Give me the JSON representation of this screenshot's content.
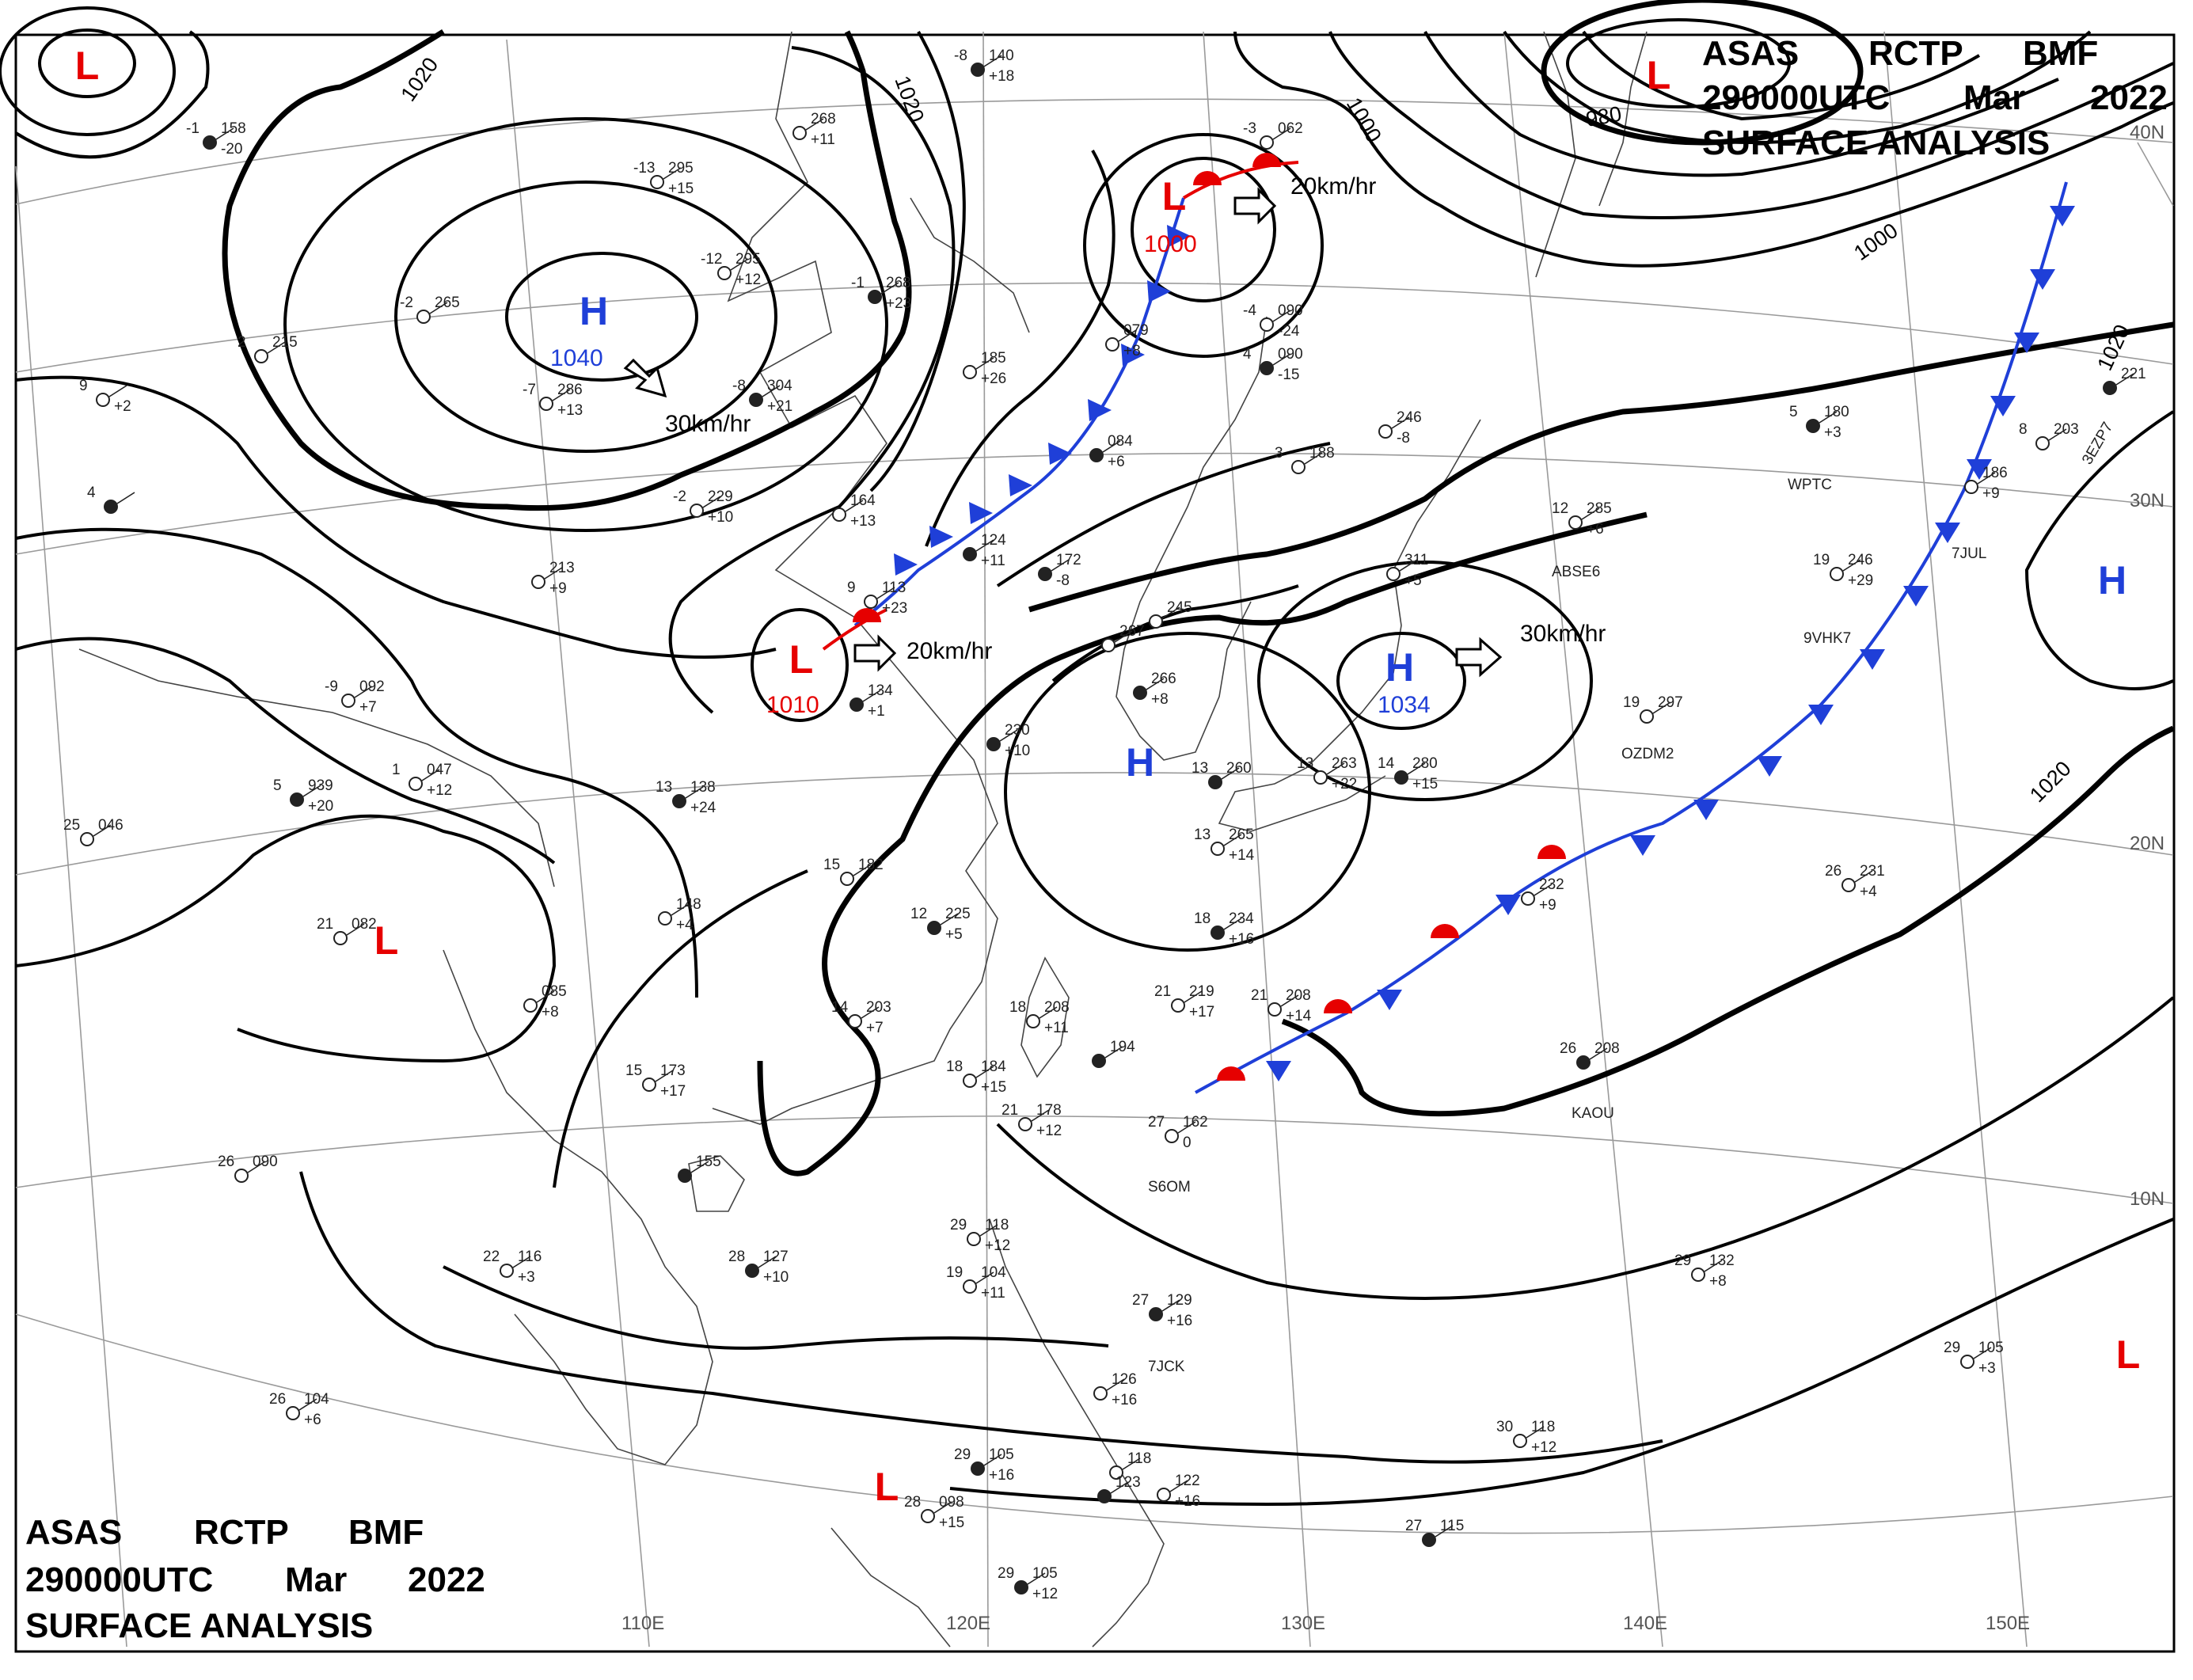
{
  "chart": {
    "agency": "ASAS",
    "station": "RCTP",
    "code": "BMF",
    "time_label": "290000UTC",
    "month": "Mar",
    "year": "2022",
    "product": "SURFACE ANALYSIS"
  },
  "longitude_labels": [
    "110E",
    "120E",
    "130E",
    "140E",
    "150E"
  ],
  "latitude_labels": [
    "40N",
    "30N",
    "20N",
    "10N"
  ],
  "isobar_labels": [
    "1020",
    "1020",
    "1000",
    "980",
    "1000",
    "1020",
    "1020"
  ],
  "pressure_centers": [
    {
      "type": "L",
      "pressure": ""
    },
    {
      "type": "H",
      "pressure": "1040"
    },
    {
      "type": "L",
      "pressure": "1000"
    },
    {
      "type": "L",
      "pressure": ""
    },
    {
      "type": "L",
      "pressure": "1010"
    },
    {
      "type": "H",
      "pressure": "1034"
    },
    {
      "type": "H",
      "pressure": ""
    },
    {
      "type": "H",
      "pressure": ""
    },
    {
      "type": "L",
      "pressure": ""
    },
    {
      "type": "L",
      "pressure": ""
    },
    {
      "type": "L",
      "pressure": ""
    }
  ],
  "movements": [
    "30km/hr",
    "20km/hr",
    "20km/hr",
    "30km/hr"
  ],
  "stations": [
    {
      "temp": "-1",
      "pressure": "158",
      "tend": "-20"
    },
    {
      "temp": "-13",
      "pressure": "295",
      "tend": "+15"
    },
    {
      "temp": "-12",
      "pressure": "295",
      "tend": "+12"
    },
    {
      "temp": "-1",
      "pressure": "268",
      "tend": "+23"
    },
    {
      "temp": "-2",
      "pressure": "265",
      "tend": ""
    },
    {
      "temp": "-7",
      "pressure": "286",
      "tend": "+13"
    },
    {
      "temp": "-8",
      "pressure": "304",
      "tend": "+21"
    },
    {
      "temp": "-2",
      "pressure": "229",
      "tend": "+10"
    },
    {
      "temp": "",
      "pressure": "268",
      "tend": "+11"
    },
    {
      "temp": "-8",
      "pressure": "140",
      "tend": "+18"
    },
    {
      "temp": "9",
      "pressure": "113",
      "tend": "+23"
    },
    {
      "temp": "",
      "pressure": "164",
      "tend": "+13"
    },
    {
      "temp": "",
      "pressure": "124",
      "tend": "+11"
    },
    {
      "temp": "",
      "pressure": "185",
      "tend": "+26"
    },
    {
      "temp": "",
      "pressure": "079",
      "tend": "+8"
    },
    {
      "temp": "",
      "pressure": "084",
      "tend": "+6"
    },
    {
      "temp": "-3",
      "pressure": "062",
      "tend": ""
    },
    {
      "temp": "-4",
      "pressure": "090",
      "tend": "-24"
    },
    {
      "temp": "4",
      "pressure": "090",
      "tend": "-15"
    },
    {
      "temp": "3",
      "pressure": "188",
      "tend": ""
    },
    {
      "temp": "",
      "pressure": "246",
      "tend": "-8"
    },
    {
      "temp": "",
      "pressure": "172",
      "tend": "-8"
    },
    {
      "temp": "",
      "pressure": "245",
      "tend": ""
    },
    {
      "temp": "",
      "pressure": "267",
      "tend": ""
    },
    {
      "temp": "",
      "pressure": "266",
      "tend": "+8"
    },
    {
      "temp": "",
      "pressure": "311",
      "tend": "+5"
    },
    {
      "temp": "12",
      "pressure": "285",
      "tend": "+6"
    },
    {
      "temp": "",
      "pressure": "134",
      "tend": "+1"
    },
    {
      "temp": "",
      "pressure": "213",
      "tend": "+9"
    },
    {
      "temp": "-9",
      "pressure": "092",
      "tend": "+7"
    },
    {
      "temp": "4",
      "pressure": "",
      "tend": ""
    },
    {
      "temp": "9",
      "pressure": "",
      "tend": "+2"
    },
    {
      "temp": "2",
      "pressure": "215",
      "tend": ""
    },
    {
      "temp": "5",
      "pressure": "939",
      "tend": "+20"
    },
    {
      "temp": "25",
      "pressure": "046",
      "tend": ""
    },
    {
      "temp": "1",
      "pressure": "047",
      "tend": "+12"
    },
    {
      "temp": "13",
      "pressure": "138",
      "tend": "+24"
    },
    {
      "temp": "21",
      "pressure": "082",
      "tend": ""
    },
    {
      "temp": "",
      "pressure": "085",
      "tend": "+8"
    },
    {
      "temp": "",
      "pressure": "230",
      "tend": "+10"
    },
    {
      "temp": "15",
      "pressure": "182",
      "tend": ""
    },
    {
      "temp": "",
      "pressure": "148",
      "tend": "+4"
    },
    {
      "temp": "12",
      "pressure": "225",
      "tend": "+5"
    },
    {
      "temp": "14",
      "pressure": "203",
      "tend": "+7"
    },
    {
      "temp": "18",
      "pressure": "208",
      "tend": "+11"
    },
    {
      "temp": "",
      "pressure": "194",
      "tend": ""
    },
    {
      "temp": "18",
      "pressure": "184",
      "tend": "+15"
    },
    {
      "temp": "21",
      "pressure": "178",
      "tend": "+12"
    },
    {
      "temp": "18",
      "pressure": "234",
      "tend": "+16"
    },
    {
      "temp": "21",
      "pressure": "219",
      "tend": "+17"
    },
    {
      "temp": "21",
      "pressure": "208",
      "tend": "+14"
    },
    {
      "temp": "13",
      "pressure": "260",
      "tend": ""
    },
    {
      "temp": "13",
      "pressure": "265",
      "tend": "+14"
    },
    {
      "temp": "13",
      "pressure": "263",
      "tend": "+22"
    },
    {
      "temp": "14",
      "pressure": "280",
      "tend": "+15"
    },
    {
      "temp": "19",
      "pressure": "297",
      "tend": ""
    },
    {
      "temp": "19",
      "pressure": "246",
      "tend": "+29"
    },
    {
      "temp": "5",
      "pressure": "180",
      "tend": "+3"
    },
    {
      "temp": "",
      "pressure": "186",
      "tend": "+9"
    },
    {
      "temp": "8",
      "pressure": "203",
      "tend": ""
    },
    {
      "temp": "",
      "pressure": "221",
      "tend": ""
    },
    {
      "temp": "",
      "pressure": "232",
      "tend": "+9"
    },
    {
      "temp": "26",
      "pressure": "231",
      "tend": "+4"
    },
    {
      "temp": "26",
      "pressure": "208",
      "tend": ""
    },
    {
      "temp": "27",
      "pressure": "162",
      "tend": "0"
    },
    {
      "temp": "15",
      "pressure": "173",
      "tend": "+17"
    },
    {
      "temp": "",
      "pressure": "155",
      "tend": ""
    },
    {
      "temp": "26",
      "pressure": "090",
      "tend": ""
    },
    {
      "temp": "22",
      "pressure": "116",
      "tend": "+3"
    },
    {
      "temp": "28",
      "pressure": "127",
      "tend": "+10"
    },
    {
      "temp": "29",
      "pressure": "118",
      "tend": "+12"
    },
    {
      "temp": "19",
      "pressure": "104",
      "tend": "+11"
    },
    {
      "temp": "27",
      "pressure": "129",
      "tend": "+16"
    },
    {
      "temp": "",
      "pressure": "126",
      "tend": "+16"
    },
    {
      "temp": "26",
      "pressure": "104",
      "tend": "+6"
    },
    {
      "temp": "29",
      "pressure": "105",
      "tend": "+16"
    },
    {
      "temp": "",
      "pressure": "118",
      "tend": ""
    },
    {
      "temp": "",
      "pressure": "122",
      "tend": "+16"
    },
    {
      "temp": "",
      "pressure": "123",
      "tend": ""
    },
    {
      "temp": "28",
      "pressure": "098",
      "tend": "+15"
    },
    {
      "temp": "30",
      "pressure": "118",
      "tend": "+12"
    },
    {
      "temp": "27",
      "pressure": "115",
      "tend": ""
    },
    {
      "temp": "29",
      "pressure": "132",
      "tend": "+8"
    },
    {
      "temp": "29",
      "pressure": "105",
      "tend": "+3"
    },
    {
      "temp": "29",
      "pressure": "105",
      "tend": "+12"
    }
  ],
  "ship_ids": [
    "ABSE6",
    "9VHK7",
    "OZDM2",
    "WPTC",
    "7JUL",
    "3EZP7",
    "KAOU",
    "S6OM",
    "7JCK"
  ],
  "fronts": [
    "cold",
    "warm",
    "warm",
    "stationary"
  ],
  "colors": {
    "low": "#e60000",
    "high": "#1f3fd8",
    "cold_front": "#1f3fd8",
    "warm_front": "#e60000",
    "isobar": "#000000",
    "grid": "#9a9a9a",
    "coast": "#444444"
  }
}
